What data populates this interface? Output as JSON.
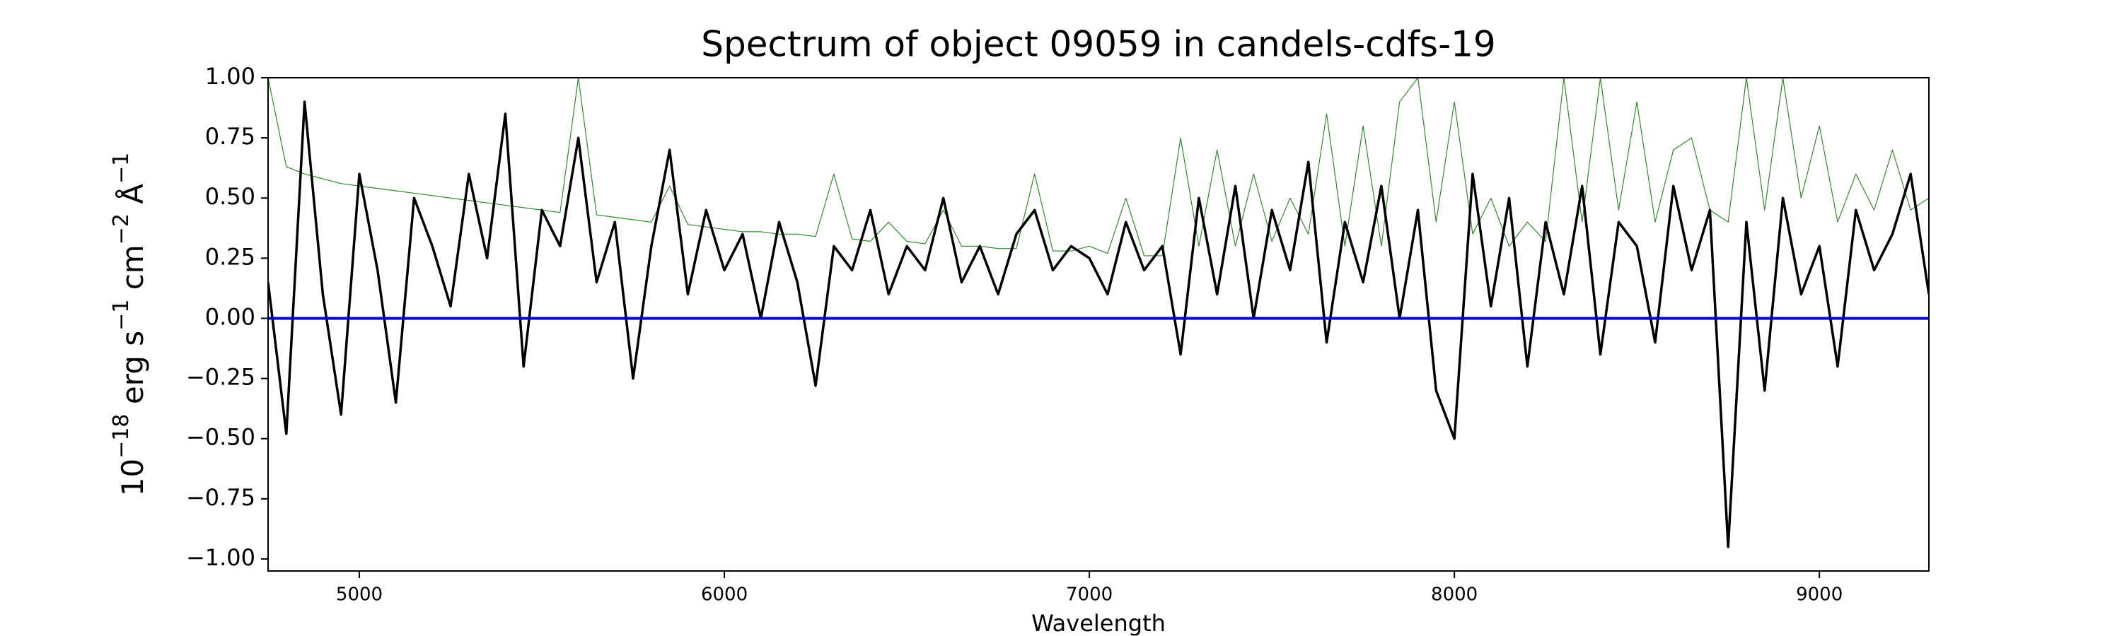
{
  "chart_data": {
    "type": "line",
    "title": "Spectrum of object 09059 in candels-cdfs-19",
    "xlabel": "Wavelength",
    "ylabel": [
      {
        "text": "10",
        "sup": false
      },
      {
        "text": "−18",
        "sup": true
      },
      {
        "text": " erg s",
        "sup": false
      },
      {
        "text": "−1",
        "sup": true
      },
      {
        "text": " cm",
        "sup": false
      },
      {
        "text": "−2",
        "sup": true
      },
      {
        "text": " Å",
        "sup": false
      },
      {
        "text": "−1",
        "sup": true
      }
    ],
    "xlim": [
      4750,
      9300
    ],
    "ylim": [
      -1.05,
      1.0
    ],
    "xticks": [
      5000,
      6000,
      7000,
      8000,
      9000
    ],
    "yticks": [
      {
        "value": 1.0,
        "label": "1.00"
      },
      {
        "value": 0.75,
        "label": "0.75"
      },
      {
        "value": 0.5,
        "label": "0.50"
      },
      {
        "value": 0.25,
        "label": "0.25"
      },
      {
        "value": 0.0,
        "label": "0.00"
      },
      {
        "value": -0.25,
        "label": "−0.25"
      },
      {
        "value": -0.5,
        "label": "−0.50"
      },
      {
        "value": -0.75,
        "label": "−0.75"
      },
      {
        "value": -1.0,
        "label": "−1.00"
      }
    ],
    "hlines": [
      {
        "value": 0,
        "color": "#0000cc"
      }
    ],
    "x": [
      4750,
      4800,
      4850,
      4900,
      4950,
      5000,
      5050,
      5100,
      5150,
      5200,
      5250,
      5300,
      5350,
      5400,
      5450,
      5500,
      5550,
      5600,
      5650,
      5700,
      5750,
      5800,
      5850,
      5900,
      5950,
      6000,
      6050,
      6100,
      6150,
      6200,
      6250,
      6300,
      6350,
      6400,
      6450,
      6500,
      6550,
      6600,
      6650,
      6700,
      6750,
      6800,
      6850,
      6900,
      6950,
      7000,
      7050,
      7100,
      7150,
      7200,
      7250,
      7300,
      7350,
      7400,
      7450,
      7500,
      7550,
      7600,
      7650,
      7700,
      7750,
      7800,
      7850,
      7900,
      7950,
      8000,
      8050,
      8100,
      8150,
      8200,
      8250,
      8300,
      8350,
      8400,
      8450,
      8500,
      8550,
      8600,
      8650,
      8700,
      8750,
      8800,
      8850,
      8900,
      8950,
      9000,
      9050,
      9100,
      9150,
      9200,
      9250,
      9300
    ],
    "series": [
      {
        "color": "#2e8b2e",
        "width": 1.2,
        "values": [
          1.0,
          0.63,
          0.6,
          0.58,
          0.56,
          0.55,
          0.54,
          0.53,
          0.52,
          0.51,
          0.5,
          0.49,
          0.48,
          0.47,
          0.46,
          0.45,
          0.44,
          1.0,
          0.43,
          0.42,
          0.41,
          0.4,
          0.55,
          0.39,
          0.38,
          0.37,
          0.36,
          0.36,
          0.35,
          0.35,
          0.34,
          0.6,
          0.33,
          0.32,
          0.4,
          0.32,
          0.31,
          0.45,
          0.3,
          0.3,
          0.29,
          0.29,
          0.6,
          0.28,
          0.28,
          0.3,
          0.27,
          0.5,
          0.26,
          0.26,
          0.75,
          0.3,
          0.7,
          0.3,
          0.6,
          0.32,
          0.5,
          0.35,
          0.85,
          0.3,
          0.8,
          0.3,
          0.9,
          1.0,
          0.4,
          0.9,
          0.35,
          0.5,
          0.3,
          0.4,
          0.32,
          1.0,
          0.4,
          1.0,
          0.45,
          0.9,
          0.4,
          0.7,
          0.75,
          0.45,
          0.4,
          1.0,
          0.45,
          1.0,
          0.5,
          0.8,
          0.4,
          0.6,
          0.45,
          0.7,
          0.45,
          0.5
        ]
      },
      {
        "color": "#000000",
        "width": 3.5,
        "values": [
          0.15,
          -0.48,
          0.9,
          0.1,
          -0.4,
          0.6,
          0.2,
          -0.35,
          0.5,
          0.3,
          0.05,
          0.6,
          0.25,
          0.85,
          -0.2,
          0.45,
          0.3,
          0.75,
          0.15,
          0.4,
          -0.25,
          0.3,
          0.7,
          0.1,
          0.45,
          0.2,
          0.35,
          0.0,
          0.4,
          0.15,
          -0.28,
          0.3,
          0.2,
          0.45,
          0.1,
          0.3,
          0.2,
          0.5,
          0.15,
          0.3,
          0.1,
          0.35,
          0.45,
          0.2,
          0.3,
          0.25,
          0.1,
          0.4,
          0.2,
          0.3,
          -0.15,
          0.5,
          0.1,
          0.55,
          0.0,
          0.45,
          0.2,
          0.65,
          -0.1,
          0.4,
          0.15,
          0.55,
          0.0,
          0.45,
          -0.3,
          -0.5,
          0.6,
          0.05,
          0.5,
          -0.2,
          0.4,
          0.1,
          0.55,
          -0.15,
          0.4,
          0.3,
          -0.1,
          0.55,
          0.2,
          0.45,
          -0.95,
          0.4,
          -0.3,
          0.5,
          0.1,
          0.3,
          -0.2,
          0.45,
          0.2,
          0.35,
          0.6,
          0.1
        ]
      }
    ]
  }
}
